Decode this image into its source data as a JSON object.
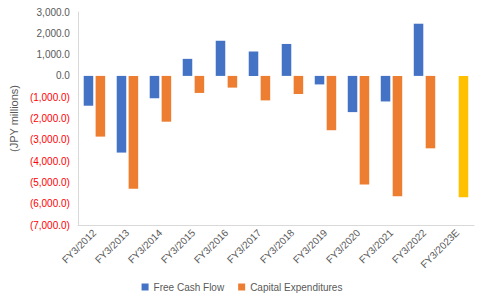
{
  "chart_data": {
    "type": "bar",
    "y_label": "(JPY millions)",
    "categories": [
      "FY3/2012",
      "FY3/2013",
      "FY3/2014",
      "FY3/2015",
      "FY3/2016",
      "FY3/2017",
      "FY3/2018",
      "FY3/2019",
      "FY3/2020",
      "FY3/2021",
      "FY3/2022",
      "FY3/2023E"
    ],
    "series": [
      {
        "name": "Free Cash Flow",
        "color": "#4472c4",
        "values": [
          -1400,
          -3600,
          -1050,
          800,
          1650,
          1150,
          1500,
          -400,
          -1700,
          -1200,
          2450,
          null
        ]
      },
      {
        "name": "Capital Expenditures",
        "color": "#ed7d31",
        "colors": [
          "#ed7d31",
          "#ed7d31",
          "#ed7d31",
          "#ed7d31",
          "#ed7d31",
          "#ed7d31",
          "#ed7d31",
          "#ed7d31",
          "#ed7d31",
          "#ed7d31",
          "#ed7d31",
          "#ffc000"
        ],
        "values": [
          -2850,
          -5300,
          -2150,
          -800,
          -550,
          -1150,
          -850,
          -2550,
          -5100,
          -5650,
          -3400,
          -5700
        ]
      }
    ],
    "ylim": [
      -7000,
      3000
    ],
    "yticks": [
      {
        "value": -7000,
        "label": "(7,000.0)"
      },
      {
        "value": -6000,
        "label": "(6,000.0)"
      },
      {
        "value": -5000,
        "label": "(5,000.0)"
      },
      {
        "value": -4000,
        "label": "(4,000.0)"
      },
      {
        "value": -3000,
        "label": "(3,000.0)"
      },
      {
        "value": -2000,
        "label": "(2,000.0)"
      },
      {
        "value": -1000,
        "label": "(1,000.0)"
      },
      {
        "value": 0,
        "label": "0.0"
      },
      {
        "value": 1000,
        "label": "1,000.0"
      },
      {
        "value": 2000,
        "label": "2,000.0"
      },
      {
        "value": 3000,
        "label": "3,000.0"
      }
    ],
    "grid": false,
    "legend": "bottom"
  }
}
